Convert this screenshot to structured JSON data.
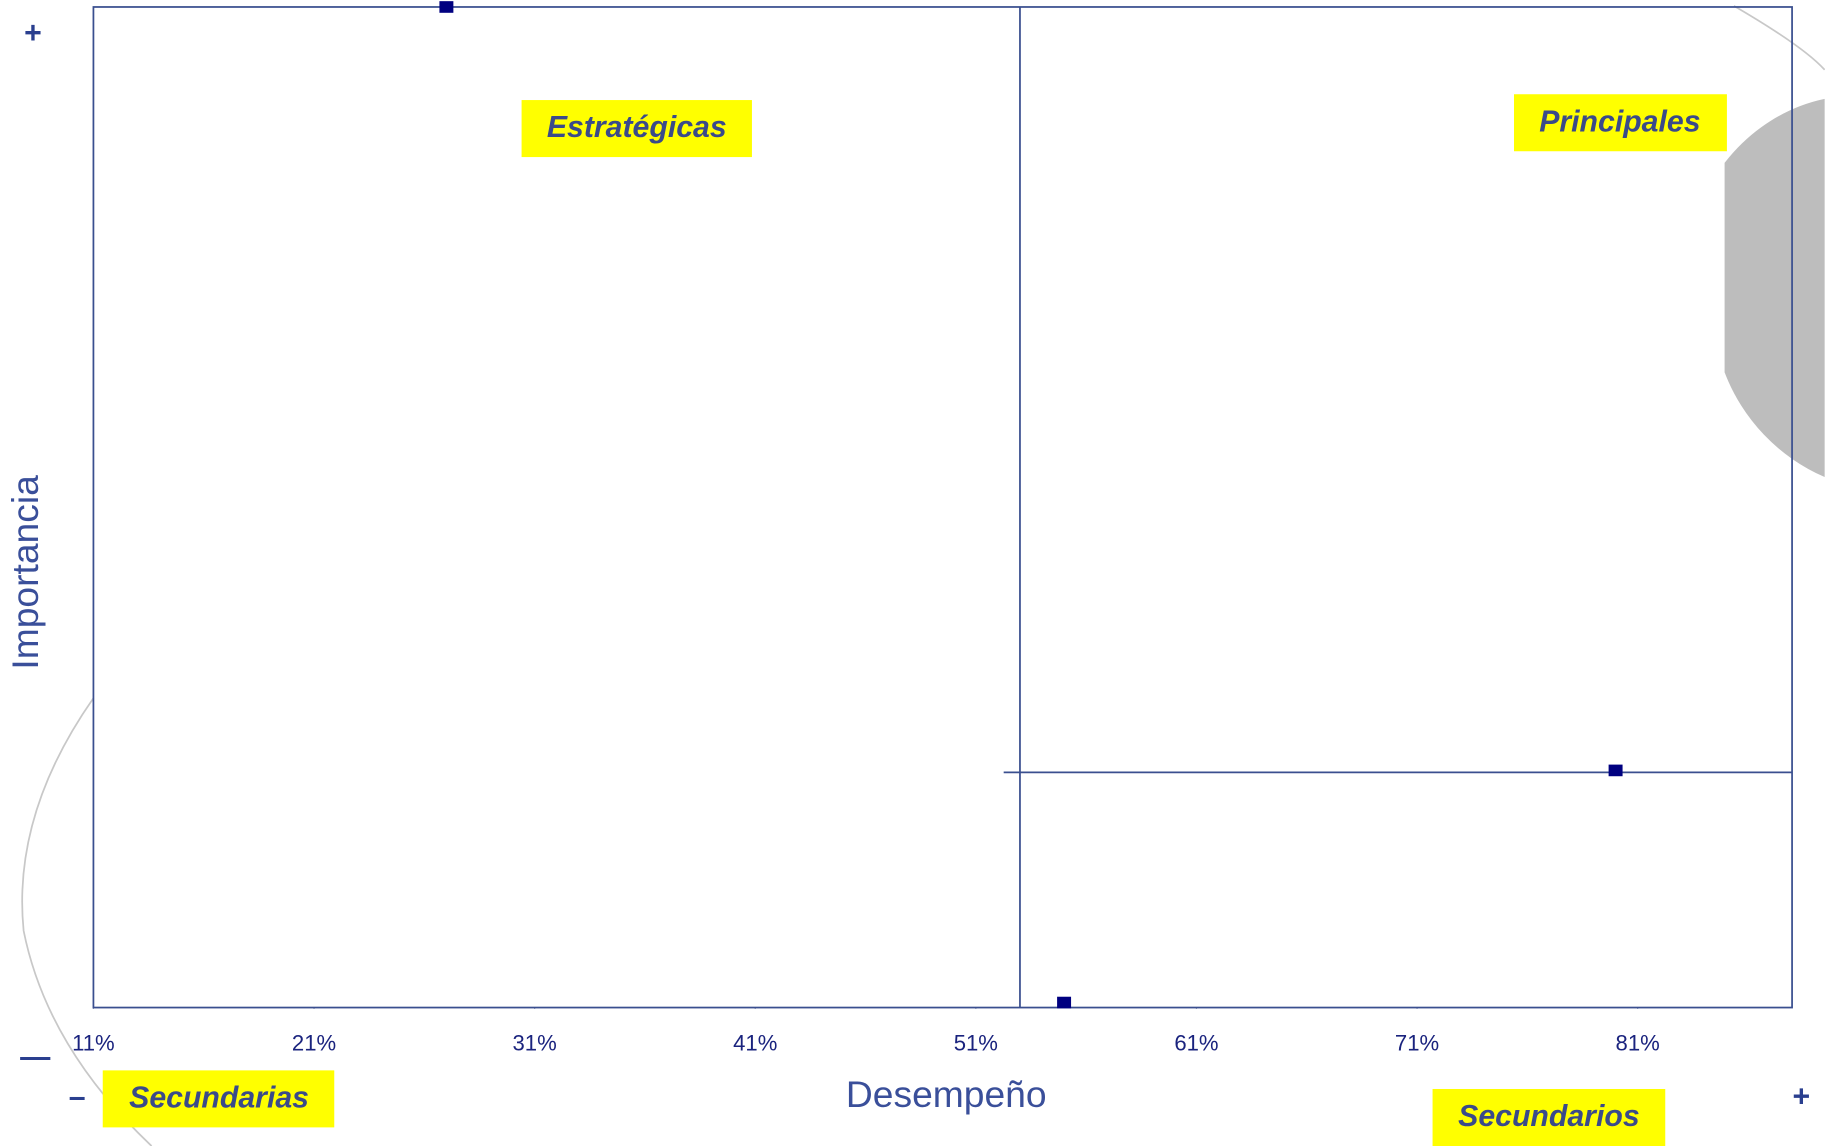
{
  "chart_data": {
    "type": "scatter",
    "x_label": "Desempeño",
    "y_label": "Importancia",
    "xlim": [
      11,
      88
    ],
    "ylim": [
      0,
      100
    ],
    "xticks": [
      {
        "value": 11,
        "label": "11%"
      },
      {
        "value": 21,
        "label": "21%"
      },
      {
        "value": 31,
        "label": "31%"
      },
      {
        "value": 41,
        "label": "41%"
      },
      {
        "value": 51,
        "label": "51%"
      },
      {
        "value": 61,
        "label": "61%"
      },
      {
        "value": 71,
        "label": "71%"
      },
      {
        "value": 81,
        "label": "81%"
      }
    ],
    "x": [
      27,
      80,
      55
    ],
    "values": [
      100,
      23.7,
      0.5
    ],
    "color": "#000080",
    "xref": 53,
    "yref": 23.5,
    "quadrants": [
      "Estratégicas",
      "Principales",
      "Secundarias",
      "Secundarios"
    ],
    "signs": [
      "+",
      "—",
      "–",
      "+"
    ]
  }
}
